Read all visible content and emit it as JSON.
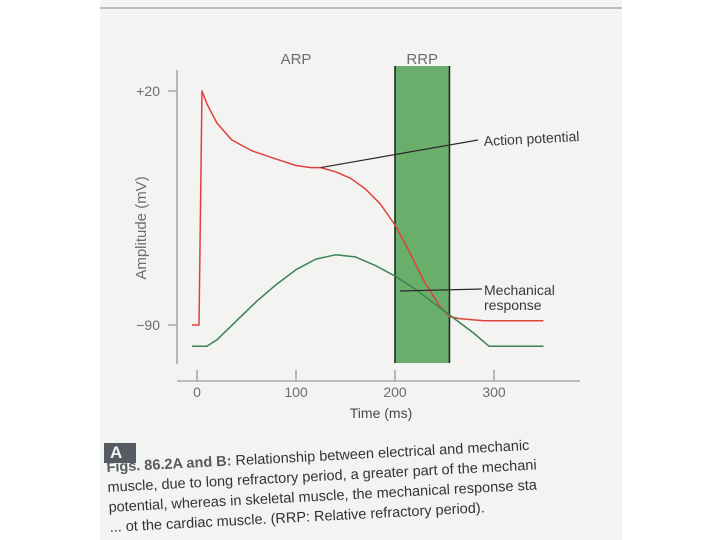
{
  "chart_data": {
    "type": "line",
    "xlabel": "Time (ms)",
    "ylabel": "Amplitude (mV)",
    "xlim": [
      -40,
      350
    ],
    "ylim": [
      -110,
      30
    ],
    "x_ticks": [
      {
        "value": 0,
        "label": "0"
      },
      {
        "value": 100,
        "label": "100"
      },
      {
        "value": 200,
        "label": "200"
      },
      {
        "value": 300,
        "label": "300"
      }
    ],
    "y_ticks": [
      {
        "value": 20,
        "label": "+20"
      },
      {
        "value": -90,
        "label": "−90"
      }
    ],
    "regions": [
      {
        "name": "ARP",
        "start": 0,
        "end": 200,
        "color": "#f3f3f1"
      },
      {
        "name": "RRP",
        "start": 200,
        "end": 255,
        "color": "#5da860"
      }
    ],
    "series": [
      {
        "name": "Action potential",
        "color": "#e0403c",
        "x": [
          -5,
          2,
          5,
          10,
          20,
          35,
          55,
          80,
          100,
          115,
          125,
          140,
          155,
          170,
          185,
          200,
          215,
          230,
          245,
          255,
          265,
          290,
          330,
          350
        ],
        "y": [
          -90,
          -90,
          20,
          14,
          5,
          -3,
          -8,
          -12,
          -15,
          -16,
          -16,
          -18,
          -21,
          -26,
          -33,
          -43,
          -56,
          -70,
          -81,
          -86,
          -87,
          -88,
          -88,
          -88
        ]
      },
      {
        "name": "Mechanical response",
        "color": "#3c8254",
        "x": [
          -5,
          10,
          20,
          40,
          60,
          80,
          100,
          120,
          140,
          160,
          180,
          200,
          220,
          240,
          260,
          280,
          295,
          340,
          350
        ],
        "y": [
          -100,
          -100,
          -97,
          -88,
          -79,
          -71,
          -64,
          -59,
          -57,
          -58,
          -62,
          -67,
          -73,
          -80,
          -87,
          -94,
          -100,
          -100,
          -100
        ]
      }
    ],
    "annotations": [
      {
        "text": "Action potential",
        "target": "Action potential"
      },
      {
        "text": "Mechanical",
        "target": "Mechanical response"
      },
      {
        "text": "response",
        "target": "Mechanical response"
      }
    ]
  },
  "figure": {
    "label": "A",
    "caption_lead": "Figs. 86.2A and B:",
    "caption_lines": [
      " Relationship between electrical and mechanic",
      "muscle, due to long refractory period, a greater part of the mechani",
      "potential, whereas in skeletal muscle, the mechanical response sta",
      "... ot the cardiac muscle. (RRP: Relative refractory period)."
    ]
  }
}
